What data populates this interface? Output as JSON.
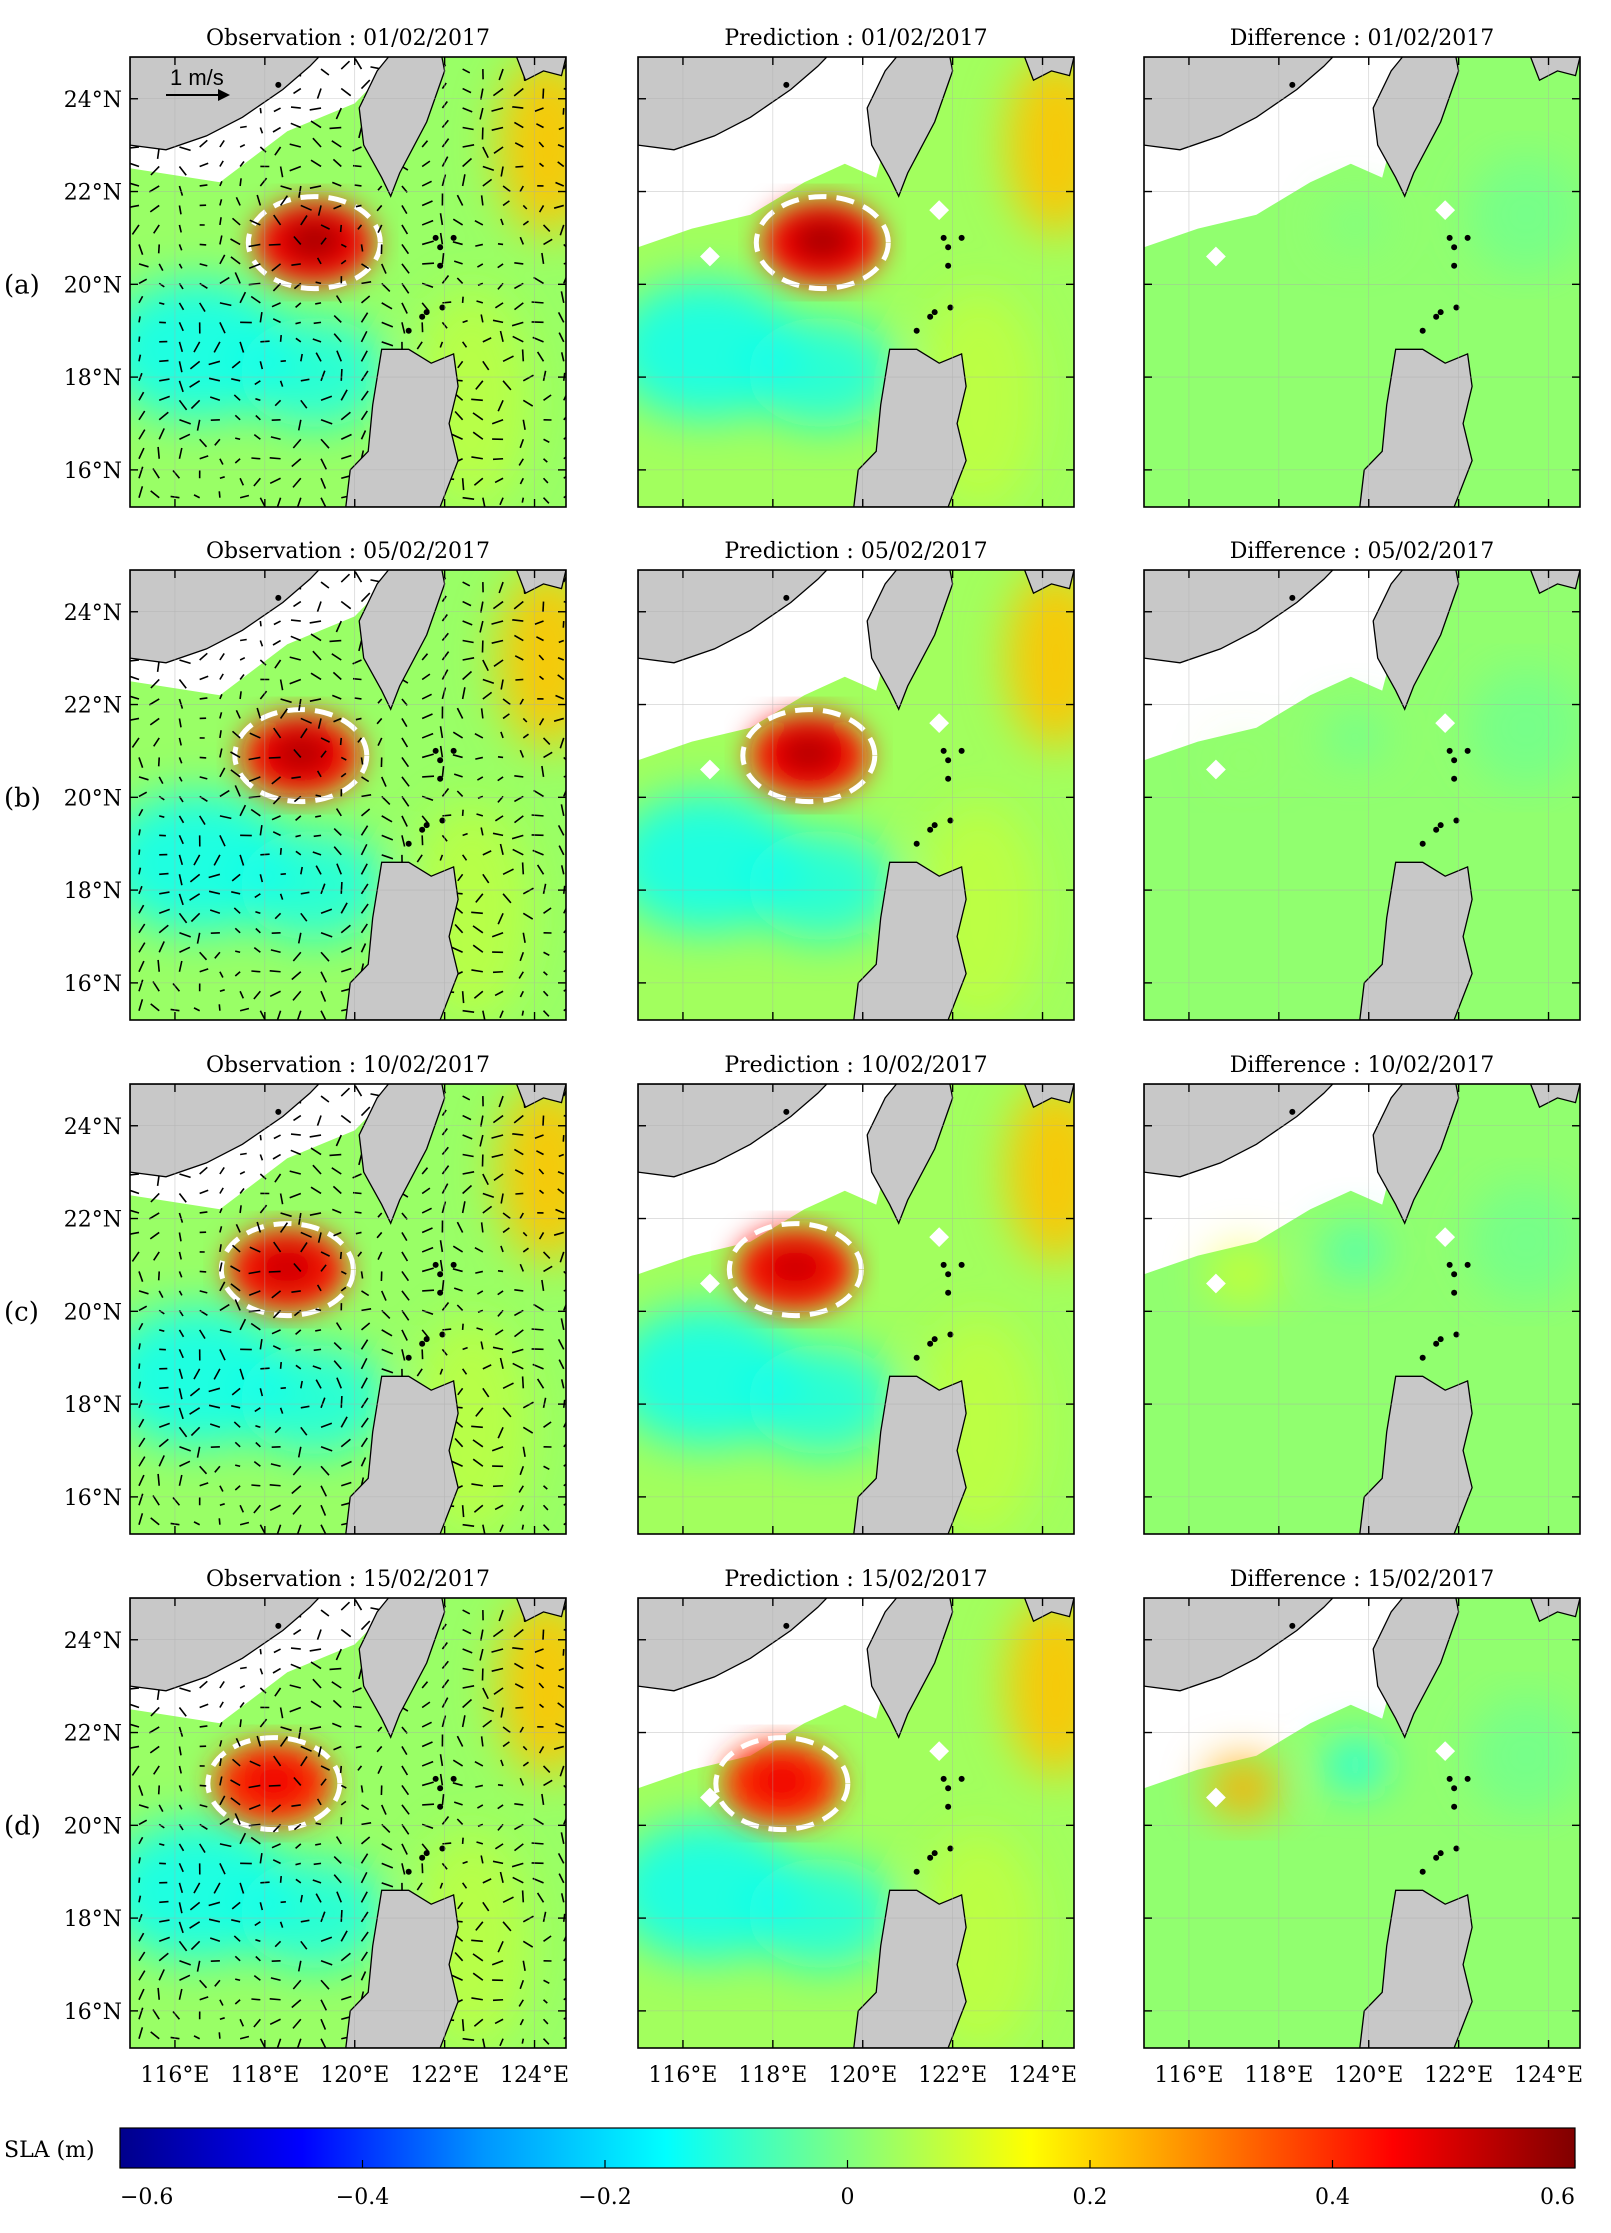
{
  "rows": [
    {
      "label": "(a)",
      "date": "01/02/2017",
      "eddy_strength": 1.0,
      "diff_strength": 0.0
    },
    {
      "label": "(b)",
      "date": "05/02/2017",
      "eddy_strength": 0.97,
      "diff_strength": 0.15
    },
    {
      "label": "(c)",
      "date": "10/02/2017",
      "eddy_strength": 0.92,
      "diff_strength": 0.55
    },
    {
      "label": "(d)",
      "date": "15/02/2017",
      "eddy_strength": 0.85,
      "diff_strength": 1.0
    }
  ],
  "columns": [
    {
      "key": "obs",
      "title_prefix": "Observation : "
    },
    {
      "key": "pred",
      "title_prefix": "Prediction : "
    },
    {
      "key": "diff",
      "title_prefix": "Difference : "
    }
  ],
  "lat_ticks": [
    "16°N",
    "18°N",
    "20°N",
    "22°N",
    "24°N"
  ],
  "lon_ticks": [
    "116°E",
    "118°E",
    "120°E",
    "122°E",
    "124°E"
  ],
  "lat_values": [
    16,
    18,
    20,
    22,
    24
  ],
  "lon_values": [
    116,
    118,
    120,
    122,
    124
  ],
  "extent": {
    "lon": [
      115,
      124.7
    ],
    "lat": [
      15.2,
      24.9
    ]
  },
  "scale_arrow": "1 m/s",
  "colorbar": {
    "label": "SLA (m)",
    "min": -0.6,
    "max": 0.6,
    "ticks": [
      "−0.6",
      "−0.4",
      "−0.2",
      "0",
      "0.2",
      "0.4",
      "0.6"
    ],
    "tick_values": [
      -0.6,
      -0.4,
      -0.2,
      0,
      0.2,
      0.4,
      0.6
    ],
    "colormap": "jet",
    "colors": [
      "#00008b",
      "#0000ff",
      "#0096ff",
      "#00ffff",
      "#80ff80",
      "#ffff00",
      "#ff8000",
      "#ff0000",
      "#800000"
    ]
  },
  "land_color": "#c8c8c8"
}
